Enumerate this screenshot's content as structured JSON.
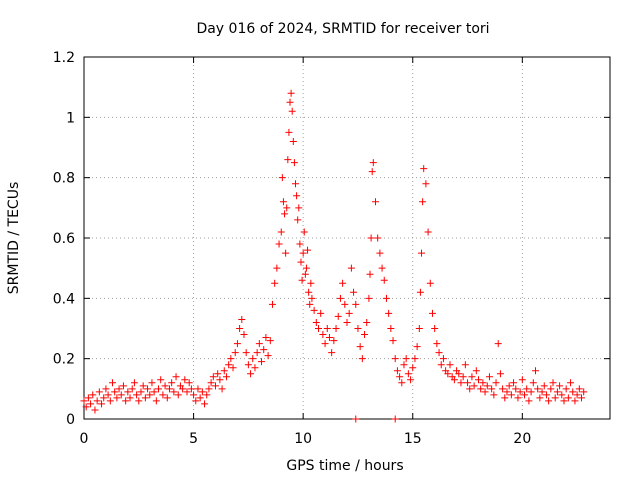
{
  "chart_data": {
    "type": "scatter",
    "title": "Day 016 of 2024, SRMTID for receiver tori",
    "xlabel": "GPS time / hours",
    "ylabel": "SRMTID / TECUs",
    "xlim": [
      0,
      24
    ],
    "ylim": [
      0,
      1.2
    ],
    "xticks": [
      0,
      5,
      10,
      15,
      20
    ],
    "xtick_labels": [
      "0",
      "5",
      "10",
      "15",
      "20"
    ],
    "yticks": [
      0,
      0.2,
      0.4,
      0.6,
      0.8,
      1,
      1.2
    ],
    "ytick_labels": [
      "0",
      "0.2",
      "0.4",
      "0.6",
      "0.8",
      "1",
      "1.2"
    ],
    "grid": true,
    "marker": "+",
    "series": [
      {
        "name": "SRMTID",
        "color": "#ff0000",
        "x": [
          0.0,
          0.1,
          0.2,
          0.3,
          0.4,
          0.5,
          0.6,
          0.7,
          0.8,
          0.9,
          1.0,
          1.1,
          1.2,
          1.3,
          1.4,
          1.5,
          1.6,
          1.7,
          1.8,
          1.9,
          2.0,
          2.1,
          2.2,
          2.3,
          2.4,
          2.5,
          2.6,
          2.7,
          2.8,
          2.9,
          3.0,
          3.1,
          3.2,
          3.3,
          3.4,
          3.5,
          3.6,
          3.7,
          3.8,
          3.9,
          4.0,
          4.1,
          4.2,
          4.3,
          4.4,
          4.5,
          4.6,
          4.7,
          4.8,
          4.9,
          5.0,
          5.1,
          5.2,
          5.3,
          5.4,
          5.5,
          5.6,
          5.7,
          5.8,
          5.9,
          6.0,
          6.1,
          6.2,
          6.3,
          6.4,
          6.5,
          6.6,
          6.7,
          6.8,
          6.9,
          7.0,
          7.1,
          7.2,
          7.3,
          7.4,
          7.5,
          7.6,
          7.7,
          7.8,
          7.9,
          8.0,
          8.1,
          8.2,
          8.3,
          8.4,
          8.5,
          8.6,
          8.7,
          8.8,
          8.9,
          9.0,
          9.05,
          9.1,
          9.15,
          9.2,
          9.25,
          9.3,
          9.35,
          9.4,
          9.45,
          9.5,
          9.55,
          9.6,
          9.65,
          9.7,
          9.75,
          9.8,
          9.85,
          9.9,
          9.95,
          10.0,
          10.05,
          10.1,
          10.15,
          10.2,
          10.25,
          10.3,
          10.35,
          10.4,
          10.5,
          10.6,
          10.7,
          10.8,
          10.9,
          11.0,
          11.1,
          11.2,
          11.3,
          11.4,
          11.5,
          11.6,
          11.7,
          11.8,
          11.9,
          12.0,
          12.1,
          12.2,
          12.3,
          12.4,
          12.5,
          12.6,
          12.7,
          12.8,
          12.9,
          13.0,
          13.05,
          13.1,
          13.15,
          13.2,
          13.3,
          13.4,
          13.5,
          13.6,
          13.7,
          13.8,
          13.9,
          14.0,
          14.1,
          14.2,
          14.3,
          14.4,
          14.5,
          14.6,
          14.7,
          14.8,
          14.9,
          15.0,
          15.1,
          15.2,
          15.3,
          15.35,
          15.4,
          15.45,
          15.5,
          15.6,
          15.7,
          15.8,
          15.9,
          16.0,
          16.1,
          16.2,
          16.3,
          16.4,
          16.5,
          16.6,
          16.7,
          16.8,
          16.9,
          17.0,
          17.1,
          17.2,
          17.3,
          17.4,
          17.5,
          17.6,
          17.7,
          17.8,
          17.9,
          18.0,
          18.1,
          18.2,
          18.3,
          18.4,
          18.5,
          18.6,
          18.7,
          18.8,
          18.9,
          19.0,
          19.1,
          19.2,
          19.3,
          19.4,
          19.5,
          19.6,
          19.7,
          19.8,
          19.9,
          20.0,
          20.1,
          20.2,
          20.3,
          20.4,
          20.5,
          20.6,
          20.7,
          20.8,
          20.9,
          21.0,
          21.1,
          21.2,
          21.3,
          21.4,
          21.5,
          21.6,
          21.7,
          21.8,
          21.9,
          22.0,
          22.1,
          22.2,
          22.3,
          22.4,
          22.5,
          22.6,
          22.7,
          22.8,
          12.4,
          14.2
        ],
        "y": [
          0.06,
          0.04,
          0.07,
          0.05,
          0.08,
          0.03,
          0.06,
          0.09,
          0.05,
          0.07,
          0.1,
          0.08,
          0.06,
          0.12,
          0.09,
          0.07,
          0.1,
          0.08,
          0.11,
          0.06,
          0.09,
          0.07,
          0.1,
          0.12,
          0.08,
          0.06,
          0.09,
          0.11,
          0.07,
          0.1,
          0.08,
          0.12,
          0.09,
          0.06,
          0.1,
          0.13,
          0.08,
          0.11,
          0.07,
          0.1,
          0.12,
          0.09,
          0.14,
          0.08,
          0.11,
          0.1,
          0.13,
          0.09,
          0.12,
          0.1,
          0.08,
          0.06,
          0.1,
          0.07,
          0.09,
          0.05,
          0.08,
          0.1,
          0.12,
          0.14,
          0.11,
          0.15,
          0.13,
          0.1,
          0.16,
          0.14,
          0.18,
          0.2,
          0.17,
          0.22,
          0.25,
          0.3,
          0.33,
          0.28,
          0.22,
          0.18,
          0.15,
          0.2,
          0.17,
          0.22,
          0.25,
          0.19,
          0.23,
          0.27,
          0.21,
          0.26,
          0.38,
          0.45,
          0.5,
          0.58,
          0.62,
          0.8,
          0.72,
          0.68,
          0.55,
          0.7,
          0.86,
          0.95,
          1.05,
          1.08,
          1.02,
          0.92,
          0.85,
          0.78,
          0.74,
          0.66,
          0.7,
          0.58,
          0.52,
          0.46,
          0.55,
          0.62,
          0.48,
          0.5,
          0.56,
          0.42,
          0.38,
          0.45,
          0.4,
          0.36,
          0.32,
          0.3,
          0.35,
          0.28,
          0.25,
          0.3,
          0.27,
          0.22,
          0.26,
          0.3,
          0.34,
          0.4,
          0.45,
          0.38,
          0.32,
          0.35,
          0.5,
          0.42,
          0.38,
          0.3,
          0.24,
          0.2,
          0.28,
          0.32,
          0.4,
          0.48,
          0.6,
          0.82,
          0.85,
          0.72,
          0.6,
          0.55,
          0.5,
          0.46,
          0.4,
          0.35,
          0.3,
          0.26,
          0.2,
          0.16,
          0.14,
          0.12,
          0.18,
          0.2,
          0.15,
          0.13,
          0.17,
          0.2,
          0.24,
          0.3,
          0.42,
          0.55,
          0.72,
          0.83,
          0.78,
          0.62,
          0.45,
          0.35,
          0.3,
          0.25,
          0.22,
          0.18,
          0.2,
          0.16,
          0.15,
          0.18,
          0.14,
          0.13,
          0.16,
          0.15,
          0.12,
          0.14,
          0.18,
          0.12,
          0.1,
          0.14,
          0.11,
          0.16,
          0.13,
          0.1,
          0.12,
          0.09,
          0.11,
          0.14,
          0.1,
          0.08,
          0.12,
          0.25,
          0.15,
          0.1,
          0.07,
          0.09,
          0.11,
          0.08,
          0.12,
          0.1,
          0.07,
          0.09,
          0.13,
          0.08,
          0.1,
          0.06,
          0.09,
          0.12,
          0.16,
          0.1,
          0.07,
          0.09,
          0.11,
          0.08,
          0.06,
          0.1,
          0.12,
          0.07,
          0.09,
          0.11,
          0.08,
          0.06,
          0.1,
          0.07,
          0.12,
          0.09,
          0.06,
          0.08,
          0.1,
          0.07,
          0.09,
          0.0,
          0.0
        ]
      }
    ]
  }
}
